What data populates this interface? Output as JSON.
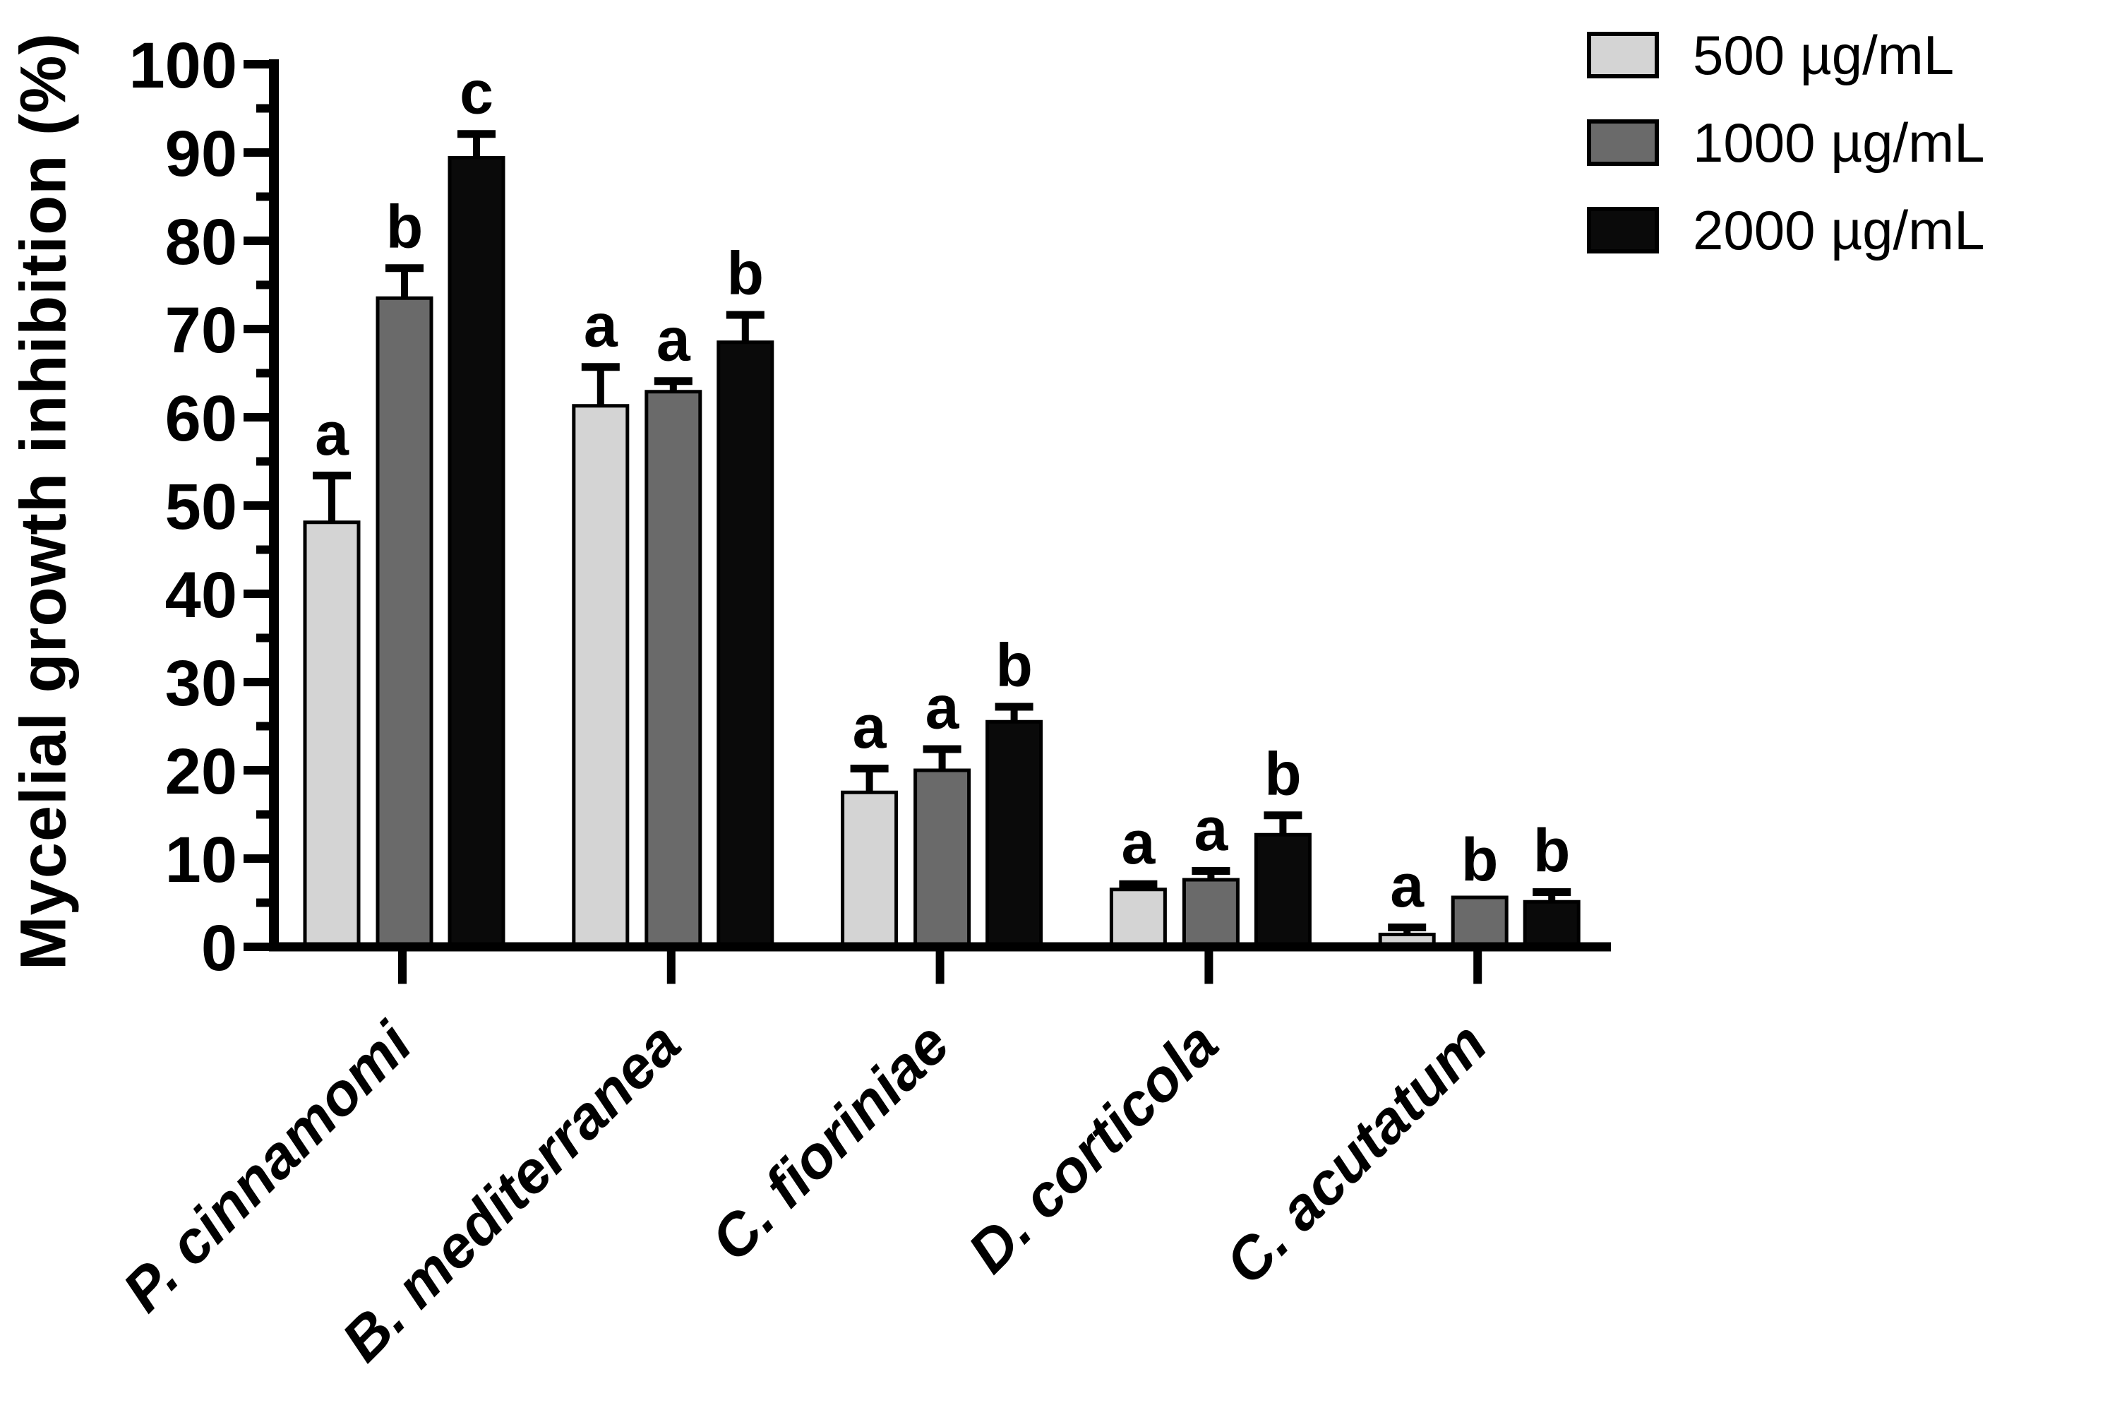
{
  "figure": {
    "background": "#ffffff"
  },
  "chart_data": {
    "type": "bar",
    "title": "",
    "ylabel": "Mycelial growth inhibition (%)",
    "xlabel": "",
    "ylim": [
      0,
      100
    ],
    "ytick_step": 10,
    "yminor_step": 5,
    "grid": false,
    "legend_position": "top-right",
    "axis_color": "#000000",
    "bar_border_color": "#000000",
    "error_bar_style": "upper-only-with-cap",
    "categories": [
      "P. cinnamomi",
      "B. mediterranea",
      "C. fioriniae",
      "D. corticola",
      "C. acutatum"
    ],
    "ytick_labels": [
      "0",
      "10",
      "20",
      "30",
      "40",
      "50",
      "60",
      "70",
      "80",
      "90",
      "100"
    ],
    "series": [
      {
        "name": "500 µg/mL",
        "color": "#d4d4d4",
        "values": [
          48.1,
          61.3,
          17.5,
          6.5,
          1.4
        ],
        "errors_plus": [
          5.3,
          4.4,
          2.7,
          0.6,
          0.8
        ],
        "sig_letters": [
          "a",
          "a",
          "a",
          "a",
          "a"
        ]
      },
      {
        "name": "1000 µg/mL",
        "color": "#6a6a6a",
        "values": [
          73.5,
          62.9,
          20.0,
          7.6,
          5.6
        ],
        "errors_plus": [
          3.4,
          1.2,
          2.4,
          1.0,
          0
        ],
        "sig_letters": [
          "b",
          "a",
          "a",
          "a",
          "b"
        ]
      },
      {
        "name": "2000 µg/mL",
        "color": "#0a0a0a",
        "values": [
          89.4,
          68.5,
          25.5,
          12.7,
          5.1
        ],
        "errors_plus": [
          2.7,
          3.1,
          1.7,
          2.2,
          1.1
        ],
        "sig_letters": [
          "c",
          "b",
          "b",
          "b",
          "b"
        ]
      }
    ]
  }
}
